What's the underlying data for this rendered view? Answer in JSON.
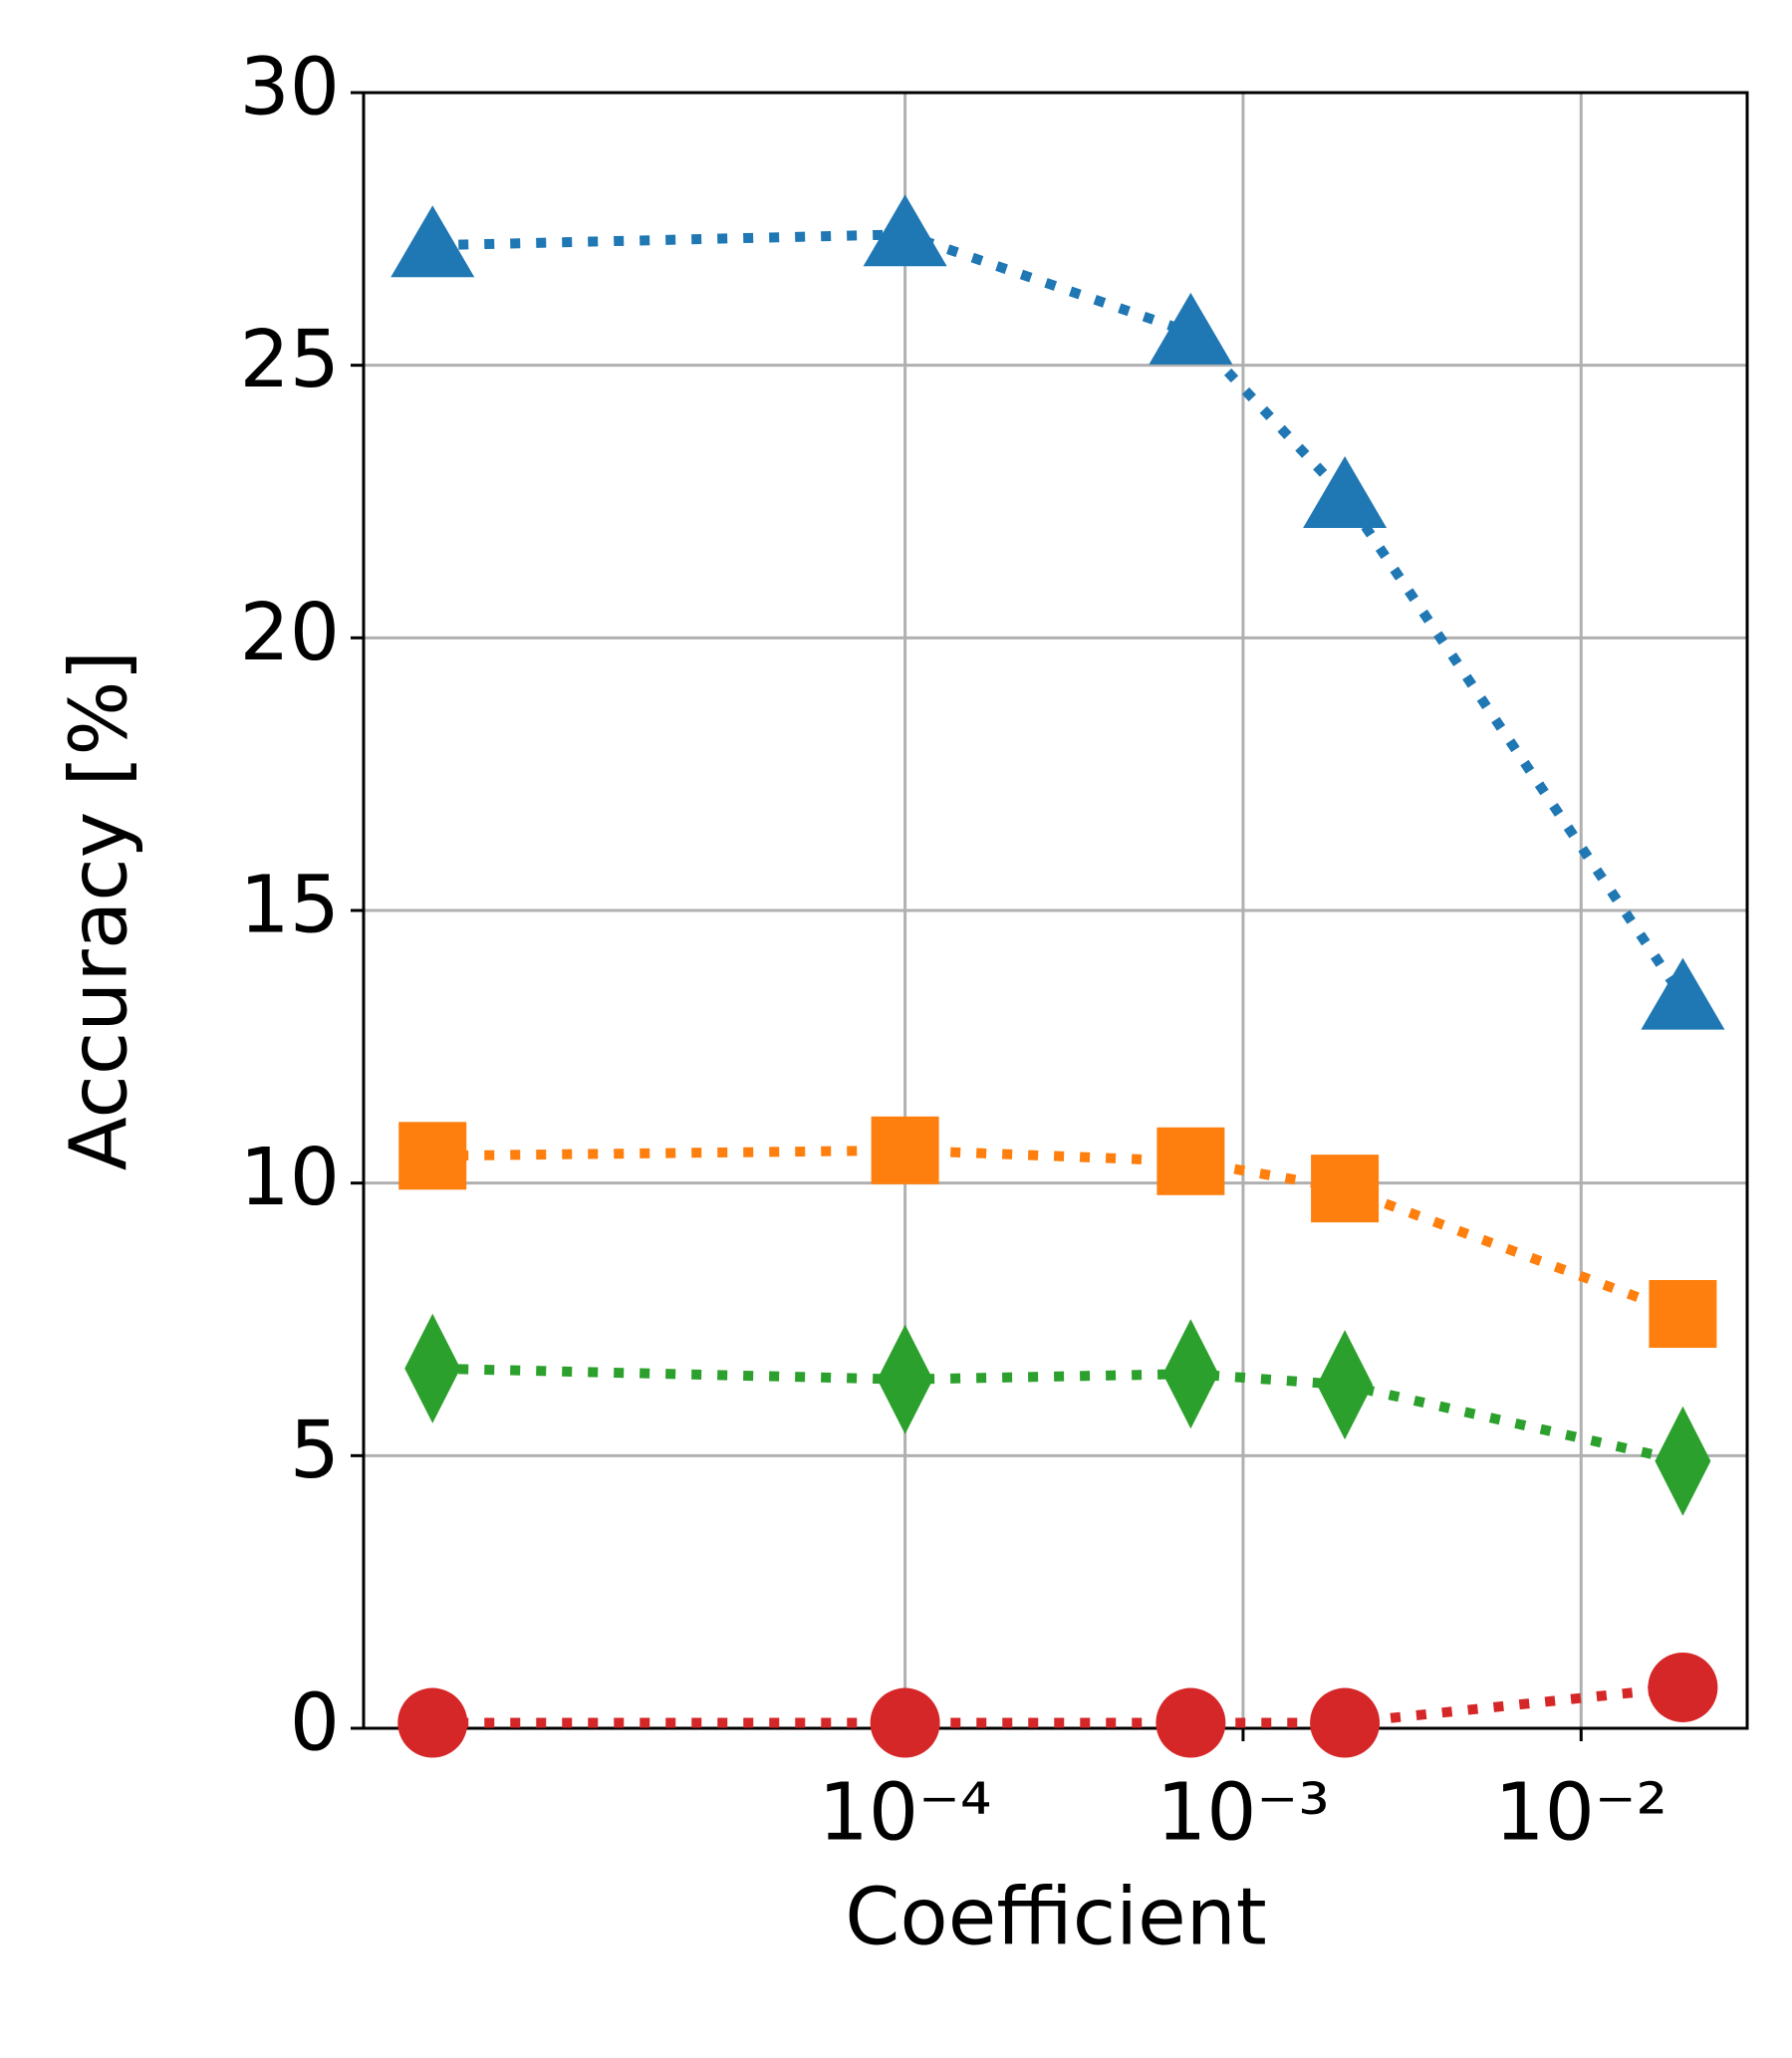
{
  "chart_data": {
    "type": "line",
    "xlabel": "Coefficient",
    "ylabel": "Accuracy [%]",
    "xscale": "log",
    "grid": true,
    "x": [
      4e-06,
      0.0001,
      0.0007,
      0.002,
      0.02
    ],
    "xlim": [
      2.5e-06,
      0.031
    ],
    "xticks": [
      {
        "value": 0.0001,
        "label": "10⁻⁴"
      },
      {
        "value": 0.001,
        "label": "10⁻³"
      },
      {
        "value": 0.01,
        "label": "10⁻²"
      }
    ],
    "ylim": [
      0,
      30
    ],
    "yticks": [
      0,
      5,
      10,
      15,
      20,
      25,
      30
    ],
    "series": [
      {
        "color": "#1f77b4",
        "marker": "triangle",
        "values": [
          27.2,
          27.4,
          25.6,
          22.6,
          13.4
        ]
      },
      {
        "color": "#ff7f0e",
        "marker": "square",
        "values": [
          10.5,
          10.6,
          10.4,
          9.9,
          7.6
        ]
      },
      {
        "color": "#2ca02c",
        "marker": "diamond",
        "values": [
          6.6,
          6.4,
          6.5,
          6.3,
          4.9
        ]
      },
      {
        "color": "#d62728",
        "marker": "circle",
        "values": [
          0.1,
          0.1,
          0.1,
          0.1,
          0.75
        ]
      }
    ]
  }
}
